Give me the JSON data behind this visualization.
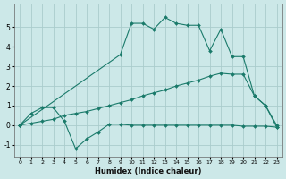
{
  "background_color": "#cce8e8",
  "grid_color": "#aacccc",
  "line_color": "#1a7a6a",
  "xlabel": "Humidex (Indice chaleur)",
  "xlim": [
    -0.5,
    23.5
  ],
  "ylim": [
    -1.6,
    6.2
  ],
  "xticks": [
    0,
    1,
    2,
    3,
    4,
    5,
    6,
    7,
    8,
    9,
    10,
    11,
    12,
    13,
    14,
    15,
    16,
    17,
    18,
    19,
    20,
    21,
    22,
    23
  ],
  "yticks": [
    -1,
    0,
    1,
    2,
    3,
    4,
    5
  ],
  "line1_x": [
    0,
    1,
    2,
    3,
    4,
    5,
    6,
    7,
    8,
    9,
    10,
    11,
    12,
    13,
    14,
    15,
    16,
    17,
    18,
    19,
    20,
    21,
    22,
    23
  ],
  "line1_y": [
    0.0,
    0.6,
    0.9,
    0.9,
    0.2,
    -1.2,
    -0.7,
    -0.35,
    0.05,
    0.05,
    0.0,
    0.0,
    0.0,
    0.0,
    0.0,
    0.0,
    0.0,
    0.0,
    0.0,
    0.0,
    -0.05,
    -0.05,
    -0.05,
    -0.1
  ],
  "line2_x": [
    0,
    9,
    10,
    11,
    12,
    13,
    14,
    15,
    16,
    17,
    18,
    19,
    20,
    21,
    22,
    23
  ],
  "line2_y": [
    0.0,
    3.6,
    5.2,
    5.2,
    4.9,
    5.5,
    5.2,
    5.1,
    5.1,
    3.8,
    4.9,
    3.5,
    3.5,
    1.5,
    1.0,
    -0.1
  ],
  "line3_x": [
    0,
    1,
    2,
    3,
    4,
    5,
    6,
    7,
    8,
    9,
    10,
    11,
    12,
    13,
    14,
    15,
    16,
    17,
    18,
    19,
    20,
    21,
    22,
    23
  ],
  "line3_y": [
    0.0,
    0.1,
    0.2,
    0.3,
    0.5,
    0.6,
    0.7,
    0.85,
    1.0,
    1.15,
    1.3,
    1.5,
    1.65,
    1.8,
    2.0,
    2.15,
    2.3,
    2.5,
    2.65,
    2.6,
    2.6,
    1.5,
    1.0,
    0.0
  ]
}
